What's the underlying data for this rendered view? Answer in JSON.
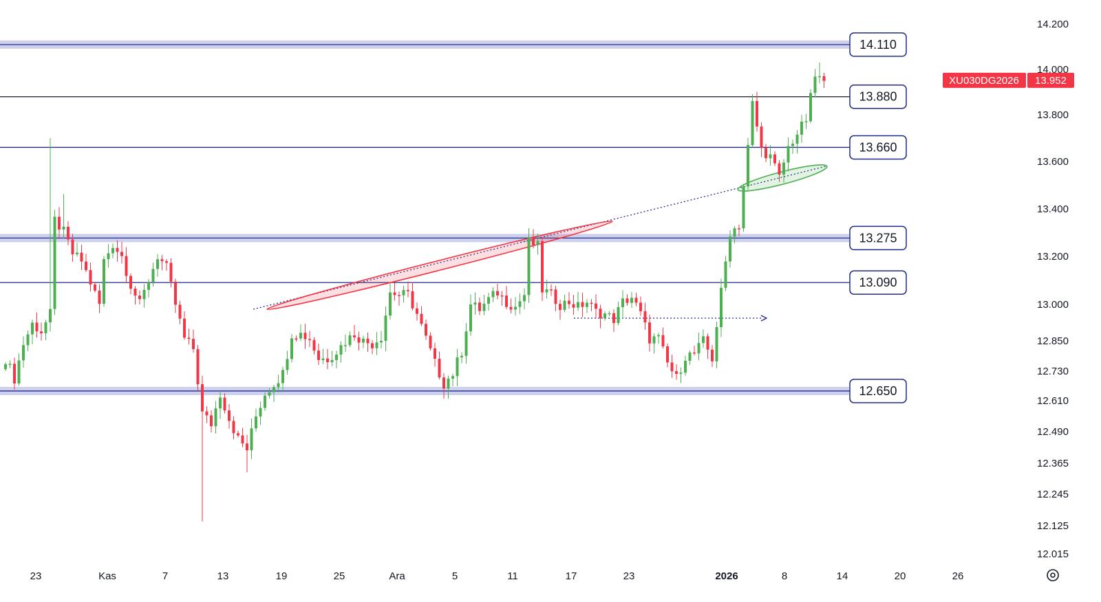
{
  "chart_data": {
    "type": "candlestick",
    "symbol": "XU030DG2026",
    "last_price": "13.952",
    "colors": {
      "up": "#4caf50",
      "down": "#f23645",
      "level_line": "#1e2a8a",
      "zone_fill": "#c5c9ea",
      "last_price_bg": "#f23645",
      "pattern_red": "#f23645",
      "pattern_green": "#4caf50",
      "text": "#131722",
      "box_border": "#1e2a8a"
    },
    "y_axis": {
      "min": 12000,
      "max": 14250,
      "scale": "log",
      "ticks": [
        "14.200",
        "14.000",
        "13.800",
        "13.600",
        "13.400",
        "13.200",
        "13.000",
        "12.850",
        "12.730",
        "12.610",
        "12.490",
        "12.365",
        "12.245",
        "12.125",
        "12.015"
      ]
    },
    "x_axis": {
      "ticks": [
        {
          "label": "23",
          "bold": false
        },
        {
          "label": "Kas",
          "bold": false
        },
        {
          "label": "7",
          "bold": false
        },
        {
          "label": "13",
          "bold": false
        },
        {
          "label": "19",
          "bold": false
        },
        {
          "label": "25",
          "bold": false
        },
        {
          "label": "Ara",
          "bold": false
        },
        {
          "label": "5",
          "bold": false
        },
        {
          "label": "11",
          "bold": false
        },
        {
          "label": "17",
          "bold": false
        },
        {
          "label": "23",
          "bold": false
        },
        {
          "label": "2026",
          "bold": true
        },
        {
          "label": "8",
          "bold": false
        },
        {
          "label": "14",
          "bold": false
        },
        {
          "label": "20",
          "bold": false
        },
        {
          "label": "26",
          "bold": false
        }
      ]
    },
    "levels": [
      {
        "label": "14.110",
        "value": 14110,
        "zone": true
      },
      {
        "label": "13.880",
        "value": 13880,
        "zone": false
      },
      {
        "label": "13.660",
        "value": 13660,
        "zone": false
      },
      {
        "label": "13.275",
        "value": 13275,
        "zone": true
      },
      {
        "label": "13.090",
        "value": 13090,
        "zone": false
      },
      {
        "label": "12.650",
        "value": 12650,
        "zone": true
      }
    ],
    "waypoints": [
      [
        0,
        12780
      ],
      [
        2,
        12700
      ],
      [
        4,
        12840
      ],
      [
        6,
        12920
      ],
      [
        8,
        12890
      ],
      [
        10,
        12960
      ],
      [
        11,
        13350
      ],
      [
        13,
        13300
      ],
      [
        15,
        13210
      ],
      [
        17,
        13180
      ],
      [
        19,
        13090
      ],
      [
        21,
        13000
      ],
      [
        22,
        13180
      ],
      [
        24,
        13250
      ],
      [
        26,
        13200
      ],
      [
        28,
        13080
      ],
      [
        30,
        13000
      ],
      [
        32,
        13100
      ],
      [
        34,
        13200
      ],
      [
        36,
        13150
      ],
      [
        38,
        13000
      ],
      [
        40,
        12860
      ],
      [
        42,
        12820
      ],
      [
        44,
        12560
      ],
      [
        46,
        12520
      ],
      [
        48,
        12640
      ],
      [
        50,
        12540
      ],
      [
        52,
        12460
      ],
      [
        54,
        12420
      ],
      [
        56,
        12550
      ],
      [
        58,
        12640
      ],
      [
        60,
        12680
      ],
      [
        62,
        12720
      ],
      [
        64,
        12880
      ],
      [
        66,
        12880
      ],
      [
        68,
        12860
      ],
      [
        70,
        12780
      ],
      [
        72,
        12780
      ],
      [
        74,
        12810
      ],
      [
        76,
        12850
      ],
      [
        78,
        12880
      ],
      [
        80,
        12850
      ],
      [
        82,
        12840
      ],
      [
        84,
        12870
      ],
      [
        86,
        13050
      ],
      [
        88,
        13040
      ],
      [
        90,
        13040
      ],
      [
        92,
        12960
      ],
      [
        94,
        12860
      ],
      [
        96,
        12760
      ],
      [
        98,
        12680
      ],
      [
        100,
        12720
      ],
      [
        102,
        12810
      ],
      [
        104,
        13000
      ],
      [
        106,
        12980
      ],
      [
        108,
        13020
      ],
      [
        110,
        13050
      ],
      [
        112,
        13010
      ],
      [
        114,
        12990
      ],
      [
        116,
        13040
      ],
      [
        117,
        13260
      ],
      [
        119,
        13240
      ],
      [
        120,
        13060
      ],
      [
        122,
        13040
      ],
      [
        124,
        13000
      ],
      [
        126,
        13010
      ],
      [
        128,
        12990
      ],
      [
        130,
        13010
      ],
      [
        132,
        12970
      ],
      [
        134,
        12960
      ],
      [
        136,
        12940
      ],
      [
        138,
        13010
      ],
      [
        140,
        13030
      ],
      [
        142,
        12960
      ],
      [
        144,
        12860
      ],
      [
        146,
        12860
      ],
      [
        148,
        12760
      ],
      [
        150,
        12700
      ],
      [
        152,
        12790
      ],
      [
        154,
        12800
      ],
      [
        156,
        12850
      ],
      [
        158,
        12780
      ],
      [
        160,
        13050
      ],
      [
        162,
        13300
      ],
      [
        164,
        13330
      ],
      [
        166,
        13660
      ],
      [
        167,
        13850
      ],
      [
        169,
        13650
      ],
      [
        171,
        13620
      ],
      [
        173,
        13530
      ],
      [
        175,
        13660
      ],
      [
        177,
        13720
      ],
      [
        179,
        13780
      ],
      [
        181,
        13970
      ],
      [
        183,
        13952
      ]
    ]
  }
}
